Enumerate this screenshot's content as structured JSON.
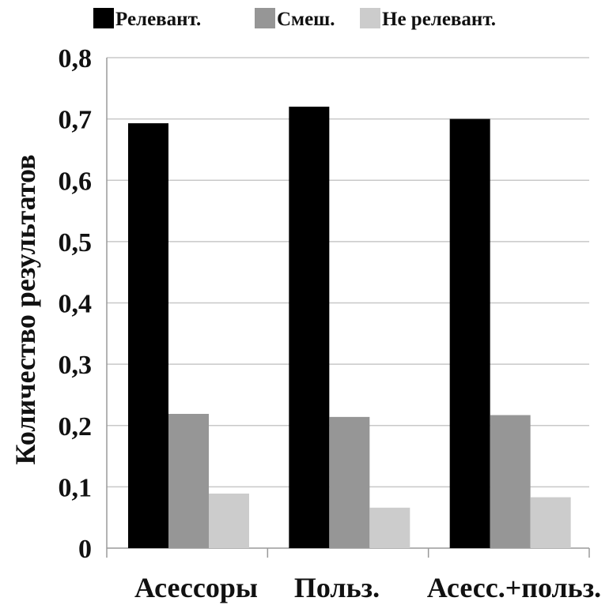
{
  "chart_data": {
    "type": "bar",
    "categories": [
      "Асессоры",
      "Польз.",
      "Асесс.+польз."
    ],
    "series": [
      {
        "name": "Релевант.",
        "values": [
          0.693,
          0.72,
          0.7
        ],
        "color": "#000000"
      },
      {
        "name": "Смеш.",
        "values": [
          0.219,
          0.214,
          0.217
        ],
        "color": "#969696"
      },
      {
        "name": "Не релевант.",
        "values": [
          0.089,
          0.066,
          0.083
        ],
        "color": "#cccccc"
      }
    ],
    "ylabel": "Количество результатов",
    "xlabel": "",
    "ylim": [
      0,
      0.8
    ],
    "yticks": [
      0,
      0.1,
      0.2,
      0.3,
      0.4,
      0.5,
      0.6,
      0.7,
      0.8
    ],
    "ytick_labels": [
      "0",
      "0,1",
      "0,2",
      "0,3",
      "0,4",
      "0,5",
      "0,6",
      "0,7",
      "0,8"
    ],
    "grid": true,
    "legend_position": "top"
  }
}
